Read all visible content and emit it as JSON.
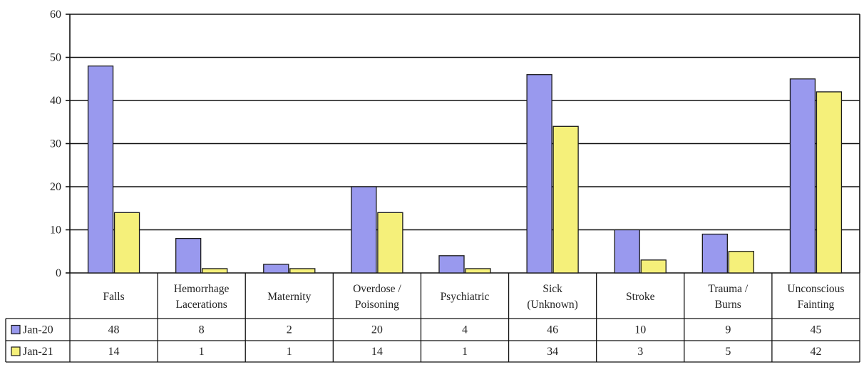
{
  "chart_data": {
    "type": "bar",
    "categories": [
      [
        "Falls"
      ],
      [
        "Hemorrhage",
        "Lacerations"
      ],
      [
        "Maternity"
      ],
      [
        "Overdose /",
        "Poisoning"
      ],
      [
        "Psychiatric"
      ],
      [
        "Sick",
        "(Unknown)"
      ],
      [
        "Stroke"
      ],
      [
        "Trauma /",
        "Burns"
      ],
      [
        "Unconscious",
        "Fainting"
      ]
    ],
    "series": [
      {
        "name": "Jan-20",
        "color": "#9999ee",
        "values": [
          48,
          8,
          2,
          20,
          4,
          46,
          10,
          9,
          45
        ]
      },
      {
        "name": "Jan-21",
        "color": "#f5f07a",
        "values": [
          14,
          1,
          1,
          14,
          1,
          34,
          3,
          5,
          42
        ]
      }
    ],
    "ylim": [
      0,
      60
    ],
    "yticks": [
      0,
      10,
      20,
      30,
      40,
      50,
      60
    ],
    "grid": true,
    "legend": "data-table",
    "data_table": true
  }
}
